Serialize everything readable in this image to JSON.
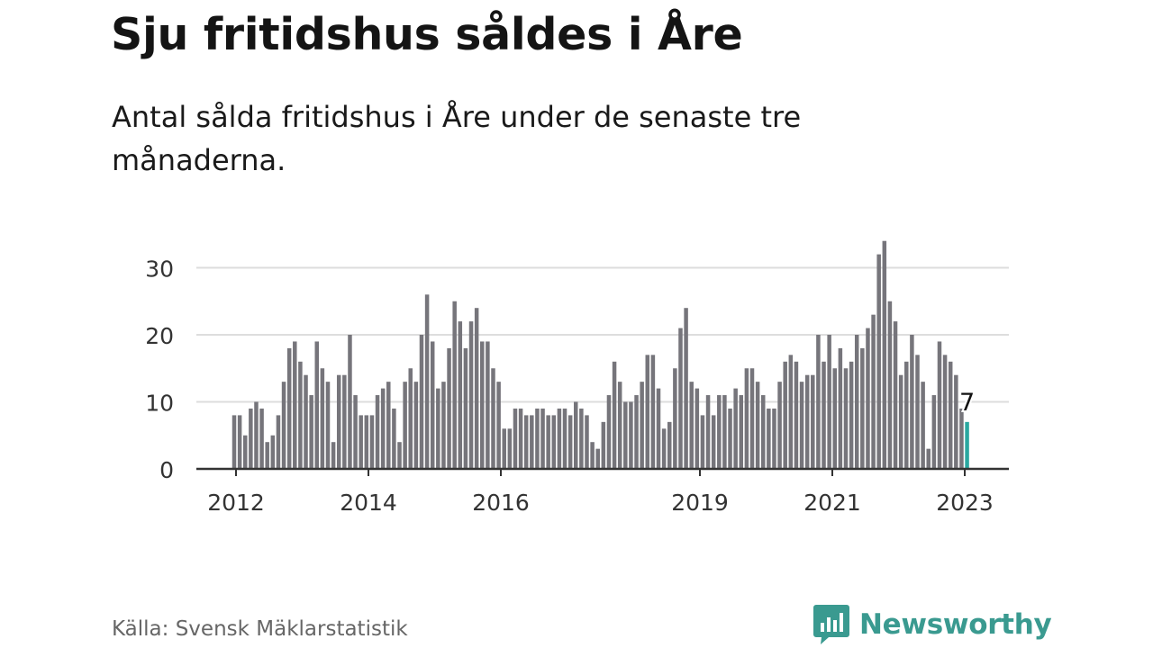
{
  "chart_data": {
    "type": "bar",
    "title": "Sju fritidshus såldes i Åre",
    "subtitle": "Antal sålda fritidshus i Åre under de senaste tre månaderna.",
    "x_tick_labels": [
      "2012",
      "2014",
      "2016",
      "2019",
      "2021",
      "2023"
    ],
    "y_ticks": [
      0,
      10,
      20,
      30
    ],
    "ylim": [
      0,
      35
    ],
    "grid": true,
    "values": [
      8,
      8,
      5,
      9,
      10,
      9,
      4,
      5,
      8,
      13,
      18,
      19,
      16,
      14,
      11,
      19,
      15,
      13,
      4,
      14,
      14,
      20,
      11,
      8,
      8,
      8,
      11,
      12,
      13,
      9,
      4,
      13,
      15,
      13,
      20,
      26,
      19,
      12,
      13,
      18,
      25,
      22,
      18,
      22,
      24,
      19,
      19,
      15,
      13,
      6,
      6,
      9,
      9,
      8,
      8,
      9,
      9,
      8,
      8,
      9,
      9,
      8,
      10,
      9,
      8,
      4,
      3,
      7,
      11,
      16,
      13,
      10,
      10,
      11,
      13,
      17,
      17,
      12,
      6,
      7,
      15,
      21,
      24,
      13,
      12,
      8,
      11,
      8,
      11,
      11,
      9,
      12,
      11,
      15,
      15,
      13,
      11,
      9,
      9,
      13,
      16,
      17,
      16,
      13,
      14,
      14,
      20,
      16,
      20,
      15,
      18,
      15,
      16,
      20,
      18,
      21,
      23,
      32,
      34,
      25,
      22,
      14,
      16,
      20,
      17,
      13,
      3,
      11,
      19,
      17,
      16,
      14,
      9,
      7
    ],
    "highlight_index": 133,
    "highlight_label": "7",
    "bar_color": "#76757b",
    "highlight_color": "#2aa8a0",
    "grid_color": "#dddddd",
    "axis_color": "#333333"
  },
  "footer": {
    "source": "Källa: Svensk Mäklarstatistik",
    "brand": "Newsworthy",
    "brand_color": "#3a9a90"
  }
}
